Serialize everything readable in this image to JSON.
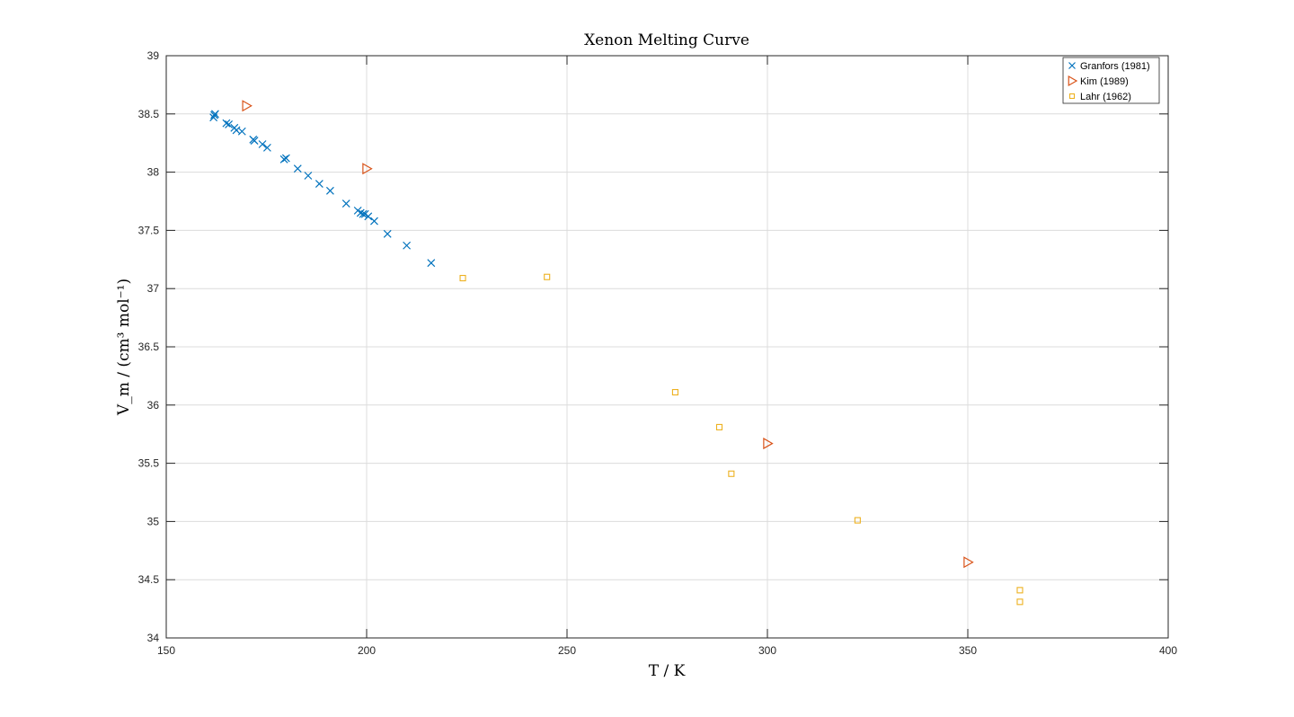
{
  "chart_data": {
    "type": "scatter",
    "title": "Xenon Melting Curve",
    "xlabel": "T / K",
    "ylabel": "V_m / (cm³ mol⁻¹)",
    "xlim": [
      150,
      400
    ],
    "ylim": [
      34,
      39
    ],
    "xticks": [
      150,
      200,
      250,
      300,
      350,
      400
    ],
    "yticks": [
      34,
      34.5,
      35,
      35.5,
      36,
      36.5,
      37,
      37.5,
      38,
      38.5,
      39
    ],
    "grid": true,
    "legend_position": "top-right",
    "series": [
      {
        "name": "Granfors (1981)",
        "marker": "x",
        "color": "#0072BD",
        "x": [
          161.8,
          162.0,
          162.2,
          165.0,
          165.6,
          167.0,
          167.5,
          168.9,
          171.7,
          172.0,
          174.0,
          175.2,
          179.4,
          179.9,
          182.8,
          185.4,
          188.2,
          190.9,
          194.9,
          197.8,
          198.5,
          199.1,
          199.6,
          200.4,
          201.9,
          205.2,
          210.0,
          216.1
        ],
        "y": [
          38.47,
          38.49,
          38.5,
          38.42,
          38.41,
          38.38,
          38.36,
          38.35,
          38.28,
          38.27,
          38.24,
          38.21,
          38.11,
          38.12,
          38.03,
          37.97,
          37.9,
          37.84,
          37.73,
          37.67,
          37.65,
          37.64,
          37.64,
          37.62,
          37.58,
          37.47,
          37.37,
          37.22
        ]
      },
      {
        "name": "Kim (1989)",
        "marker": "triangle-right",
        "color": "#D95319",
        "x": [
          170.0,
          200.0,
          300.0,
          350.0
        ],
        "y": [
          38.57,
          38.03,
          35.67,
          34.65
        ]
      },
      {
        "name": "Lahr (1962)",
        "marker": "square",
        "color": "#EDB120",
        "x": [
          224.0,
          245.0,
          277.0,
          288.0,
          291.0,
          322.5,
          363.0,
          363.0
        ],
        "y": [
          37.09,
          37.1,
          36.11,
          35.81,
          35.41,
          35.01,
          34.41,
          34.31
        ]
      }
    ]
  }
}
